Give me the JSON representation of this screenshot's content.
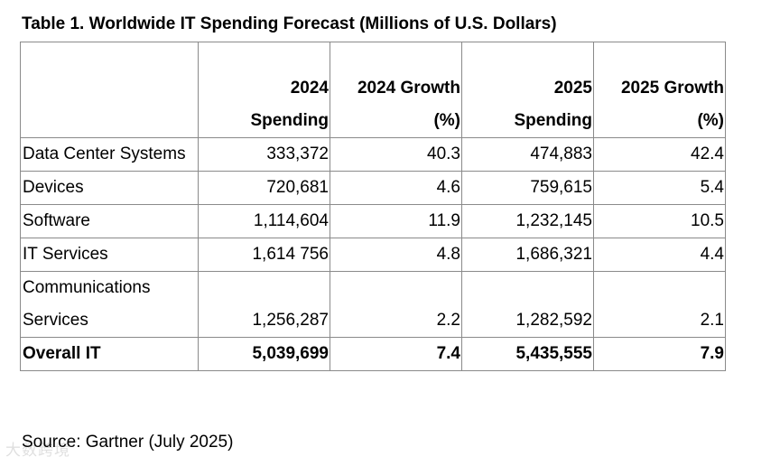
{
  "title": "Table 1. Worldwide IT Spending Forecast (Millions of U.S. Dollars)",
  "headers": [
    "",
    "2024 Spending",
    "2024 Growth (%)",
    "2025 Spending",
    "2025 Growth (%)"
  ],
  "header_lines": [
    [
      "",
      ""
    ],
    [
      "2024",
      "Spending"
    ],
    [
      "2024 Growth",
      "(%)"
    ],
    [
      "2025",
      "Spending"
    ],
    [
      "2025 Growth",
      "(%)"
    ]
  ],
  "rows": [
    {
      "label": "Data Center Systems",
      "cells": [
        "333,372",
        "40.3",
        "474,883",
        "42.4"
      ]
    },
    {
      "label": "Devices",
      "cells": [
        "720,681",
        "4.6",
        "759,615",
        "5.4"
      ]
    },
    {
      "label": "Software",
      "cells": [
        "1,114,604",
        "11.9",
        "1,232,145",
        "10.5"
      ]
    },
    {
      "label": "IT Services",
      "cells": [
        "1,614 756",
        "4.8",
        "1,686,321",
        "4.4"
      ]
    },
    {
      "label": "Communications Services",
      "cells": [
        "1,256,287",
        "2.2",
        "1,282,592",
        "2.1"
      ]
    },
    {
      "label": "Overall IT",
      "cells": [
        "5,039,699",
        "7.4",
        "5,435,555",
        "7.9"
      ]
    }
  ],
  "source": "Source: Gartner (July 2025)",
  "watermark": "大数跨境"
}
